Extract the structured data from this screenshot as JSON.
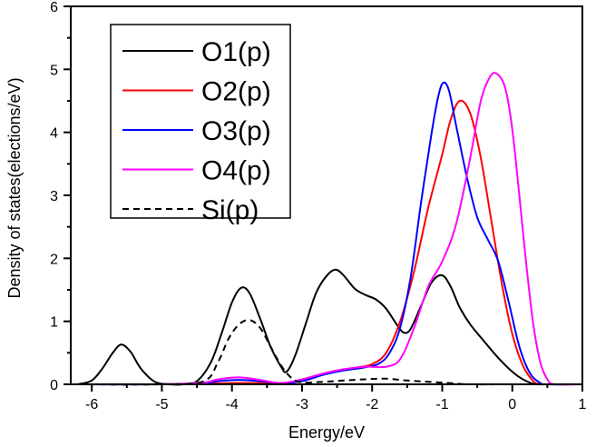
{
  "chart_data": {
    "type": "line",
    "title": "",
    "xlabel": "Energy/eV",
    "ylabel": "Density of states(elections/eV)",
    "xlim": [
      -6.3,
      1
    ],
    "ylim": [
      0,
      6
    ],
    "xticks": [
      -6,
      -5,
      -4,
      -3,
      -2,
      -1,
      0,
      1
    ],
    "xtick_labels": [
      "-6",
      "-5",
      "-4",
      "-3",
      "-2",
      "-1",
      "0",
      "1"
    ],
    "yticks": [
      0,
      1,
      2,
      3,
      4,
      5,
      6
    ],
    "ytick_labels": [
      "0",
      "1",
      "2",
      "3",
      "4",
      "5",
      "6"
    ],
    "grid": false,
    "legend_position": "top-left",
    "series": [
      {
        "name": "O1(p)",
        "color": "#000000",
        "dash": "solid",
        "x": [
          -6.2,
          -6.0,
          -5.85,
          -5.7,
          -5.58,
          -5.45,
          -5.3,
          -5.1,
          -4.9,
          -4.7,
          -4.5,
          -4.3,
          -4.15,
          -4.0,
          -3.87,
          -3.75,
          -3.6,
          -3.45,
          -3.3,
          -3.22,
          -3.1,
          -2.95,
          -2.8,
          -2.65,
          -2.52,
          -2.4,
          -2.25,
          -2.1,
          -1.95,
          -1.8,
          -1.65,
          -1.55,
          -1.45,
          -1.3,
          -1.15,
          -1.0,
          -0.88,
          -0.75,
          -0.6,
          -0.4,
          -0.2,
          0.0,
          0.15,
          0.3,
          0.5,
          1.0
        ],
        "y": [
          0.0,
          0.06,
          0.25,
          0.5,
          0.63,
          0.52,
          0.25,
          0.04,
          0.0,
          0.0,
          0.05,
          0.35,
          0.8,
          1.3,
          1.53,
          1.45,
          1.05,
          0.6,
          0.28,
          0.2,
          0.45,
          0.95,
          1.45,
          1.72,
          1.82,
          1.72,
          1.52,
          1.42,
          1.35,
          1.2,
          0.95,
          0.82,
          0.88,
          1.25,
          1.62,
          1.73,
          1.55,
          1.22,
          0.95,
          0.68,
          0.42,
          0.2,
          0.08,
          0.01,
          0.0,
          0.0
        ]
      },
      {
        "name": "O2(p)",
        "color": "#ff0000",
        "dash": "solid",
        "x": [
          -6.2,
          -5.0,
          -4.4,
          -4.0,
          -3.6,
          -3.2,
          -3.0,
          -2.8,
          -2.5,
          -2.2,
          -2.0,
          -1.8,
          -1.6,
          -1.4,
          -1.2,
          -1.0,
          -0.88,
          -0.75,
          -0.6,
          -0.45,
          -0.3,
          -0.15,
          0.0,
          0.15,
          0.3,
          0.4,
          0.5,
          1.0
        ],
        "y": [
          0.0,
          0.0,
          0.01,
          0.02,
          0.02,
          0.02,
          0.07,
          0.14,
          0.22,
          0.27,
          0.32,
          0.5,
          1.0,
          1.8,
          2.8,
          3.65,
          4.2,
          4.5,
          4.3,
          3.6,
          2.6,
          1.6,
          0.8,
          0.3,
          0.05,
          0.0,
          0.0,
          0.0
        ]
      },
      {
        "name": "O3(p)",
        "color": "#0000ff",
        "dash": "solid",
        "x": [
          -6.2,
          -5.0,
          -4.4,
          -4.2,
          -3.9,
          -3.6,
          -3.3,
          -3.0,
          -2.7,
          -2.4,
          -2.1,
          -1.9,
          -1.75,
          -1.6,
          -1.45,
          -1.3,
          -1.15,
          -1.05,
          -0.98,
          -0.9,
          -0.8,
          -0.65,
          -0.5,
          -0.35,
          -0.2,
          -0.05,
          0.1,
          0.25,
          0.4,
          0.5,
          1.0
        ],
        "y": [
          0.0,
          0.0,
          0.02,
          0.05,
          0.07,
          0.05,
          0.02,
          0.05,
          0.15,
          0.22,
          0.27,
          0.33,
          0.5,
          0.9,
          1.7,
          2.9,
          4.0,
          4.6,
          4.79,
          4.65,
          4.1,
          3.3,
          2.65,
          2.3,
          1.95,
          1.3,
          0.6,
          0.18,
          0.02,
          0.0,
          0.0
        ]
      },
      {
        "name": "O4(p)",
        "color": "#ff00ff",
        "dash": "solid",
        "x": [
          -6.2,
          -5.0,
          -4.4,
          -4.2,
          -3.9,
          -3.6,
          -3.3,
          -3.0,
          -2.7,
          -2.4,
          -2.1,
          -1.8,
          -1.6,
          -1.4,
          -1.2,
          -1.0,
          -0.8,
          -0.6,
          -0.45,
          -0.32,
          -0.22,
          -0.1,
          0.0,
          0.1,
          0.2,
          0.3,
          0.4,
          0.5,
          0.6,
          1.0
        ],
        "y": [
          0.0,
          0.0,
          0.03,
          0.08,
          0.11,
          0.07,
          0.02,
          0.08,
          0.17,
          0.24,
          0.28,
          0.28,
          0.4,
          0.9,
          1.55,
          1.95,
          2.55,
          3.6,
          4.5,
          4.88,
          4.93,
          4.7,
          4.05,
          3.0,
          1.9,
          0.95,
          0.35,
          0.08,
          0.0,
          0.0
        ]
      },
      {
        "name": "Si(p)",
        "color": "#000000",
        "dash": "dashed",
        "x": [
          -6.2,
          -5.0,
          -4.4,
          -4.2,
          -4.05,
          -3.9,
          -3.75,
          -3.6,
          -3.45,
          -3.3,
          -3.15,
          -3.0,
          -2.7,
          -2.4,
          -2.1,
          -1.8,
          -1.5,
          -1.2,
          -0.9,
          -0.6,
          0.0,
          1.0
        ],
        "y": [
          0.0,
          0.0,
          0.05,
          0.35,
          0.72,
          0.95,
          1.02,
          0.9,
          0.6,
          0.3,
          0.1,
          0.03,
          0.04,
          0.06,
          0.08,
          0.09,
          0.06,
          0.04,
          0.02,
          0.0,
          0.0,
          0.0
        ]
      }
    ]
  }
}
